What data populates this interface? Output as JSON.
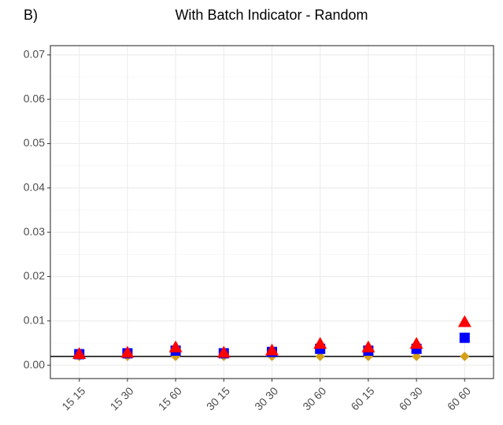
{
  "chart_data": {
    "type": "scatter",
    "tag": "B)",
    "title": "With Batch Indicator - Random",
    "categories": [
      "15 15",
      "15 30",
      "15 60",
      "30 15",
      "30 30",
      "30 60",
      "60 15",
      "60 30",
      "60 60"
    ],
    "series": [
      {
        "color": "#d4a017",
        "marker": "diamond",
        "values": [
          0.002,
          0.002,
          0.002,
          0.002,
          0.002,
          0.002,
          0.002,
          0.002,
          0.002
        ]
      },
      {
        "color": "#0000ff",
        "marker": "square",
        "values": [
          0.0025,
          0.0027,
          0.0033,
          0.0027,
          0.003,
          0.0037,
          0.0033,
          0.0037,
          0.0062
        ]
      },
      {
        "color": "#ff0000",
        "marker": "triangle",
        "values": [
          0.0025,
          0.0028,
          0.004,
          0.0028,
          0.0033,
          0.0048,
          0.004,
          0.0048,
          0.0097
        ]
      }
    ],
    "hline": 0.002,
    "ylim": [
      -0.003,
      0.0721
    ],
    "yticks": [
      {
        "value": 0,
        "label": "0.00"
      },
      {
        "value": 0.01,
        "label": "0.01"
      },
      {
        "value": 0.02,
        "label": "0.02"
      },
      {
        "value": 0.03,
        "label": "0.03"
      },
      {
        "value": 0.04,
        "label": "0.04"
      },
      {
        "value": 0.05,
        "label": "0.05"
      },
      {
        "value": 0.06,
        "label": "0.06"
      },
      {
        "value": 0.07,
        "label": "0.07"
      }
    ],
    "grid": true
  }
}
